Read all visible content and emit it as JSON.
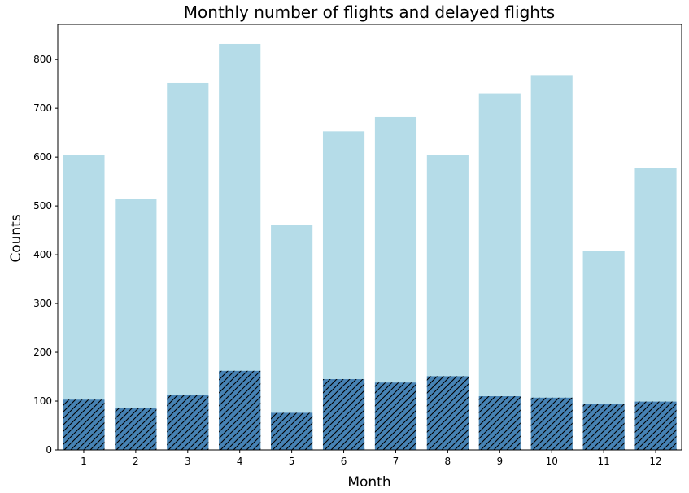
{
  "chart_data": {
    "type": "bar",
    "title": "Monthly number of flights and delayed flights",
    "xlabel": "Month",
    "ylabel": "Counts",
    "categories": [
      "1",
      "2",
      "3",
      "4",
      "5",
      "6",
      "7",
      "8",
      "9",
      "10",
      "11",
      "12"
    ],
    "series": [
      {
        "values": [
          605,
          515,
          752,
          832,
          461,
          653,
          682,
          605,
          731,
          768,
          408,
          577
        ],
        "color": "#add8e6",
        "alpha": 0.9
      },
      {
        "values": [
          103,
          85,
          112,
          162,
          76,
          145,
          138,
          151,
          110,
          107,
          94,
          99
        ],
        "color": "#4682b4",
        "hatch": "///"
      }
    ],
    "ylim": [
      0,
      872
    ],
    "yticks": [
      0,
      100,
      200,
      300,
      400,
      500,
      600,
      700,
      800
    ],
    "grid": false,
    "legend": "none"
  }
}
